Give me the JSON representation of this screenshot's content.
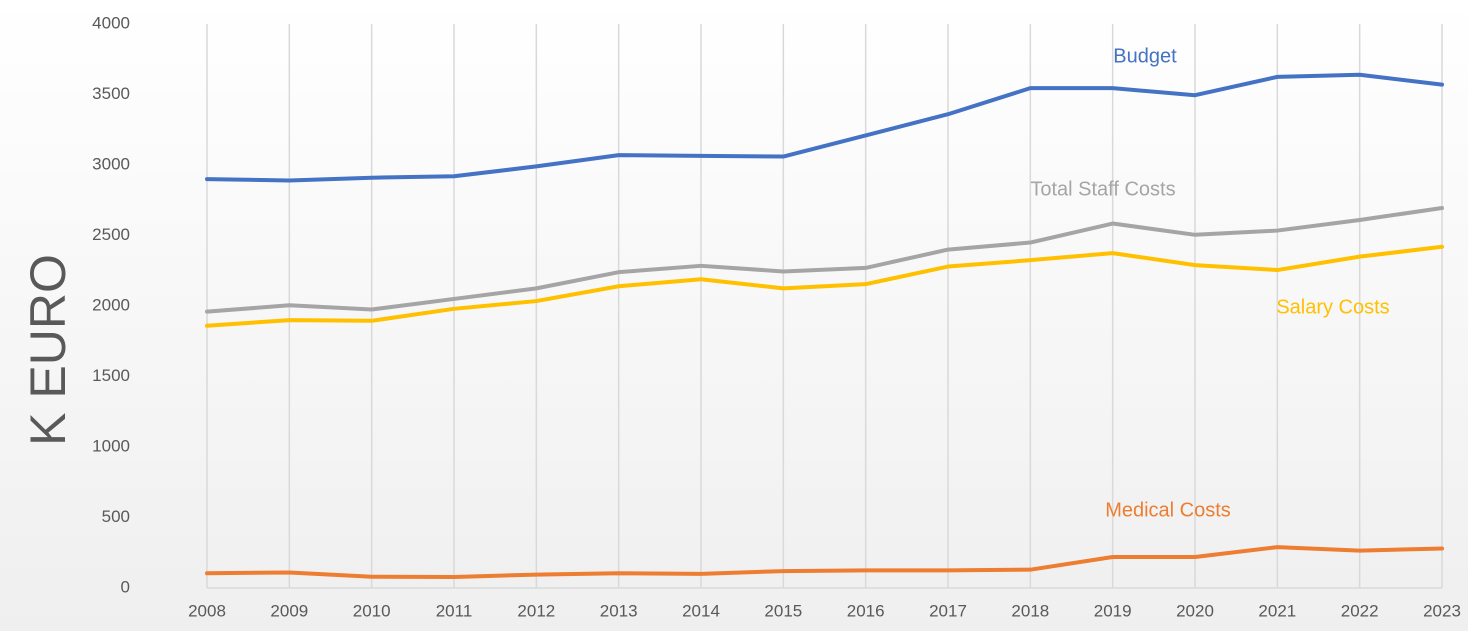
{
  "chart_data": {
    "type": "line",
    "y_label": "K EURO",
    "categories": [
      "2008",
      "2009",
      "2010",
      "2011",
      "2012",
      "2013",
      "2014",
      "2015",
      "2016",
      "2017",
      "2018",
      "2019",
      "2020",
      "2021",
      "2022",
      "2023"
    ],
    "series": [
      {
        "name": "Budget",
        "color": "#4472c4",
        "values": [
          2900,
          2890,
          2910,
          2920,
          2990,
          3070,
          3065,
          3060,
          3210,
          3360,
          3545,
          3545,
          3495,
          3625,
          3640,
          3570
        ]
      },
      {
        "name": "Total Staff Costs",
        "color": "#a5a5a5",
        "values": [
          1960,
          2005,
          1975,
          2050,
          2125,
          2240,
          2285,
          2245,
          2270,
          2400,
          2450,
          2585,
          2505,
          2535,
          2610,
          2695
        ]
      },
      {
        "name": "Salary Costs",
        "color": "#ffc000",
        "values": [
          1860,
          1900,
          1895,
          1980,
          2035,
          2140,
          2190,
          2125,
          2155,
          2280,
          2325,
          2375,
          2290,
          2255,
          2350,
          2420
        ]
      },
      {
        "name": "Medical Costs",
        "color": "#ed7d31",
        "values": [
          105,
          110,
          80,
          78,
          95,
          105,
          100,
          120,
          125,
          125,
          130,
          220,
          220,
          290,
          265,
          280
        ]
      }
    ],
    "ylim": [
      0,
      4000
    ],
    "yticks": [
      0,
      500,
      1000,
      1500,
      2000,
      2500,
      3000,
      3500,
      4000
    ],
    "grid": true
  }
}
